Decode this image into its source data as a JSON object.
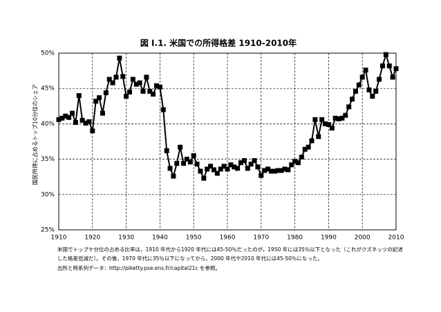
{
  "chart_data": {
    "type": "line",
    "title": "図 I.1. 米国での所得格差 1910-2010年",
    "y_label": "国民所得に占めるトップ10分位のシェア",
    "notes": [
      "米国でトップ十分位の占める比率は，1910 年代から1920 年代には45-50％だったのが，1950 年には35％以下となった（これがクズネッツの記述",
      "した格差低減だ）。その後，1970 年代に35％以下になってから，2000 年代や2010 年代には45-50％になった。",
      "出所と時系列データ：http://piketty.pse.ens.fr/capital21c を参照。"
    ],
    "x": [
      1910,
      1911,
      1912,
      1913,
      1914,
      1915,
      1916,
      1917,
      1918,
      1919,
      1920,
      1921,
      1922,
      1923,
      1924,
      1925,
      1926,
      1927,
      1928,
      1929,
      1930,
      1931,
      1932,
      1933,
      1934,
      1935,
      1936,
      1937,
      1938,
      1939,
      1940,
      1941,
      1942,
      1943,
      1944,
      1945,
      1946,
      1947,
      1948,
      1949,
      1950,
      1951,
      1952,
      1953,
      1954,
      1955,
      1956,
      1957,
      1958,
      1959,
      1960,
      1961,
      1962,
      1963,
      1964,
      1965,
      1966,
      1967,
      1968,
      1969,
      1970,
      1971,
      1972,
      1973,
      1974,
      1975,
      1976,
      1977,
      1978,
      1979,
      1980,
      1981,
      1982,
      1983,
      1984,
      1985,
      1986,
      1987,
      1988,
      1989,
      1990,
      1991,
      1992,
      1993,
      1994,
      1995,
      1996,
      1997,
      1998,
      1999,
      2000,
      2001,
      2002,
      2003,
      2004,
      2005,
      2006,
      2007,
      2008,
      2009,
      2010
    ],
    "values": [
      40.6,
      40.8,
      41.1,
      40.9,
      41.5,
      40.2,
      44.0,
      40.5,
      40.1,
      40.3,
      39.0,
      43.2,
      43.7,
      41.5,
      44.4,
      46.3,
      45.8,
      46.6,
      49.3,
      46.7,
      43.9,
      44.5,
      46.3,
      45.6,
      45.8,
      44.6,
      46.6,
      44.6,
      44.2,
      45.4,
      45.2,
      42.0,
      36.2,
      33.7,
      32.6,
      34.4,
      36.7,
      34.4,
      35.0,
      34.6,
      35.5,
      34.3,
      33.3,
      32.3,
      33.6,
      34.0,
      33.5,
      33.0,
      33.6,
      34.0,
      33.6,
      34.2,
      33.9,
      33.7,
      34.5,
      34.8,
      33.7,
      34.3,
      34.8,
      33.9,
      32.7,
      33.4,
      33.6,
      33.3,
      33.3,
      33.4,
      33.4,
      33.6,
      33.5,
      34.2,
      34.7,
      34.5,
      35.3,
      36.4,
      36.7,
      37.6,
      40.6,
      38.2,
      40.6,
      40.0,
      39.9,
      39.4,
      40.8,
      40.7,
      40.8,
      41.2,
      42.4,
      43.5,
      44.6,
      45.5,
      46.6,
      47.6,
      44.8,
      43.9,
      44.6,
      46.3,
      48.2,
      49.8,
      48.2,
      46.6,
      47.8
    ],
    "color": "#000000",
    "xlim": [
      1910,
      2010
    ],
    "xticks": [
      1910,
      1920,
      1930,
      1940,
      1950,
      1960,
      1970,
      1980,
      1990,
      2000,
      2010
    ],
    "ylim": [
      25,
      50
    ],
    "yticks": [
      {
        "value": 25,
        "label": "25%"
      },
      {
        "value": 30,
        "label": "30%"
      },
      {
        "value": 35,
        "label": "35%"
      },
      {
        "value": 40,
        "label": "40%"
      },
      {
        "value": 45,
        "label": "45%"
      },
      {
        "value": 50,
        "label": "50%"
      }
    ],
    "grid": true
  }
}
